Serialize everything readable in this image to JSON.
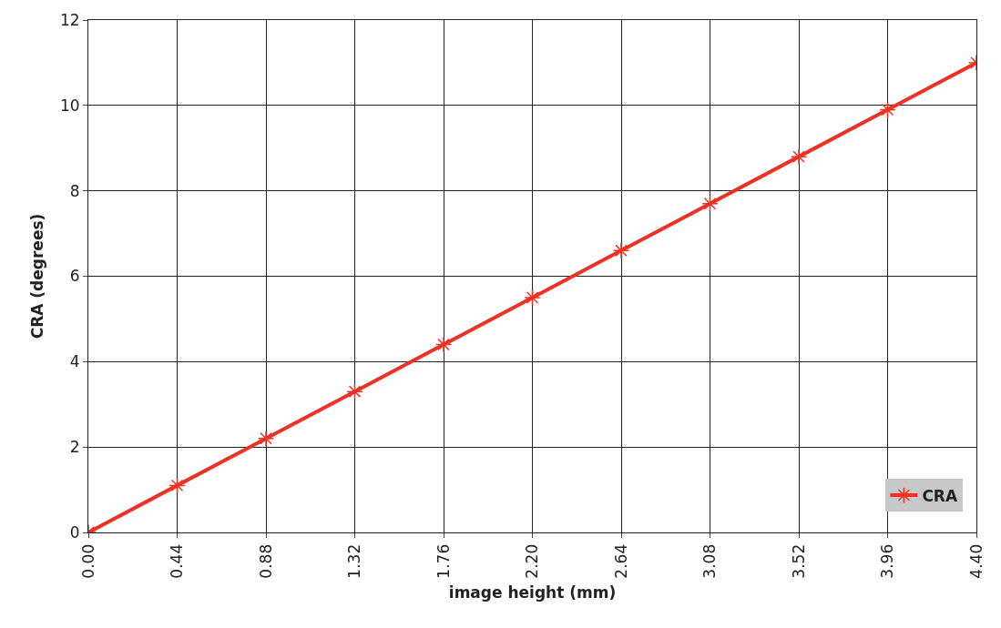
{
  "chart_data": {
    "type": "line",
    "xlabel": "image height (mm)",
    "ylabel": "CRA (degrees)",
    "x": [
      0,
      0.44,
      0.88,
      1.32,
      1.76,
      2.2,
      2.64,
      3.08,
      3.52,
      3.96,
      4.4
    ],
    "series": [
      {
        "name": "CRA",
        "color": "#ee3124",
        "values": [
          0,
          1.1,
          2.2,
          3.3,
          4.4,
          5.5,
          6.6,
          7.7,
          8.8,
          9.9,
          11
        ]
      }
    ],
    "xlim": [
      0,
      4.4
    ],
    "ylim": [
      0,
      12
    ],
    "xticks": [
      {
        "value": 0,
        "label": "0.00"
      },
      {
        "value": 0.44,
        "label": "0.44"
      },
      {
        "value": 0.88,
        "label": "0.88"
      },
      {
        "value": 1.32,
        "label": "1.32"
      },
      {
        "value": 1.76,
        "label": "1.76"
      },
      {
        "value": 2.2,
        "label": "2.20"
      },
      {
        "value": 2.64,
        "label": "2.64"
      },
      {
        "value": 3.08,
        "label": "3.08"
      },
      {
        "value": 3.52,
        "label": "3.52"
      },
      {
        "value": 3.96,
        "label": "3.96"
      },
      {
        "value": 4.4,
        "label": "4.40"
      }
    ],
    "yticks": [
      0,
      2,
      4,
      6,
      8,
      10,
      12
    ],
    "grid": true,
    "legend": "bottom right",
    "marker": "cross",
    "line_style": "solid"
  }
}
